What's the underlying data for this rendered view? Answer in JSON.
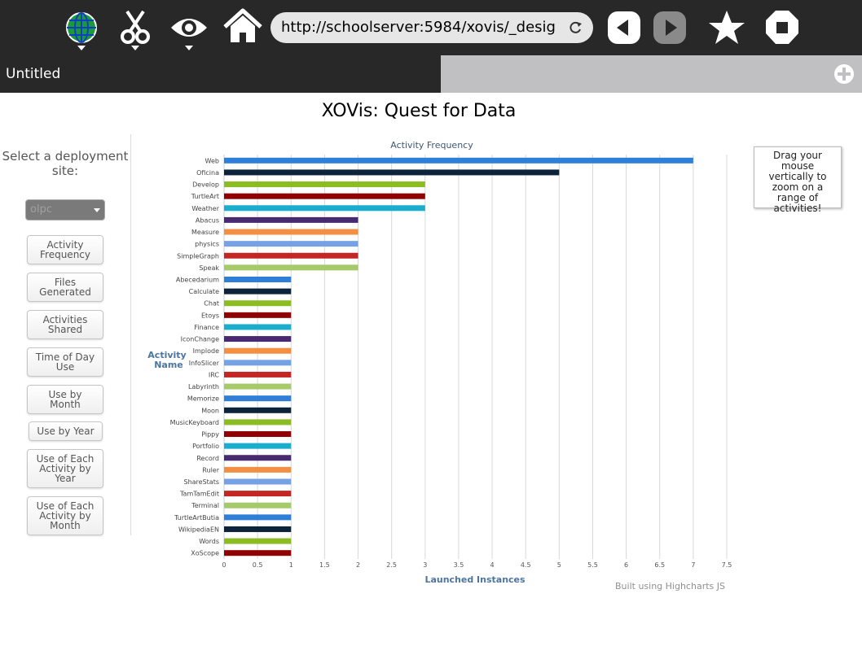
{
  "toolbar": {
    "buttons": [
      {
        "name": "network-globe-icon",
        "has_menu": true
      },
      {
        "name": "scissors-icon",
        "has_menu": true
      },
      {
        "name": "eye-icon",
        "has_menu": true
      },
      {
        "name": "home-icon",
        "has_menu": false
      },
      {
        "name": "back-icon",
        "has_menu": false
      },
      {
        "name": "forward-icon",
        "has_menu": false
      },
      {
        "name": "star-icon",
        "has_menu": false
      },
      {
        "name": "stop-icon",
        "has_menu": false
      }
    ],
    "url": "http://schoolserver:5984/xovis/_desig",
    "reload_icon": "reload-icon"
  },
  "tabs": {
    "active_label": "Untitled",
    "add_icon": "plus-circle-icon"
  },
  "page": {
    "title": "XOVis: Quest for Data"
  },
  "sidebar": {
    "heading": "Select a deployment site:",
    "site_select_value": "olpc",
    "buttons": [
      "Activity\nFrequency",
      "Files\nGenerated",
      "Activities\nShared",
      "Time of Day\nUse",
      "Use by\nMonth",
      "Use by Year",
      "Use of Each\nActivity by\nYear",
      "Use of Each\nActivity by\nMonth"
    ]
  },
  "tooltip": {
    "text": "Drag your mouse vertically to zoom on a range of activities!"
  },
  "chart_data": {
    "type": "bar",
    "orientation": "horizontal",
    "title": "Activity Frequency",
    "xlabel": "Launched Instances",
    "ylabel": "Activity Name",
    "xlim": [
      0,
      7.5
    ],
    "xticks": [
      "0",
      "0.5",
      "1",
      "1.5",
      "2",
      "2.5",
      "3",
      "3.5",
      "4",
      "4.5",
      "5",
      "5.5",
      "6",
      "6.5",
      "7",
      "7.5"
    ],
    "grid": true,
    "legend": "none",
    "categories": [
      "Web",
      "Oficina",
      "Develop",
      "TurtleArt",
      "Weather",
      "Abacus",
      "Measure",
      "physics",
      "SimpleGraph",
      "Speak",
      "Abecedarium",
      "Calculate",
      "Chat",
      "Etoys",
      "Finance",
      "IconChange",
      "Implode",
      "InfoSlicer",
      "IRC",
      "Labyrinth",
      "Memorize",
      "Moon",
      "MusicKeyboard",
      "Pippy",
      "Portfolio",
      "Record",
      "Ruler",
      "ShareStats",
      "TamTamEdit",
      "Terminal",
      "TurtleArtButia",
      "WikipediaEN",
      "Words",
      "XoScope"
    ],
    "values": [
      7,
      5,
      3,
      3,
      3,
      2,
      2,
      2,
      2,
      2,
      1,
      1,
      1,
      1,
      1,
      1,
      1,
      1,
      1,
      1,
      1,
      1,
      1,
      1,
      1,
      1,
      1,
      1,
      1,
      1,
      1,
      1,
      1,
      1
    ],
    "colors": [
      "#2f7ed8",
      "#0d233a",
      "#8bbc21",
      "#910000",
      "#1aadce",
      "#492970",
      "#f28f43",
      "#77a1e5",
      "#c42525",
      "#a6c96a"
    ],
    "credits": "Built using Highcharts JS"
  }
}
